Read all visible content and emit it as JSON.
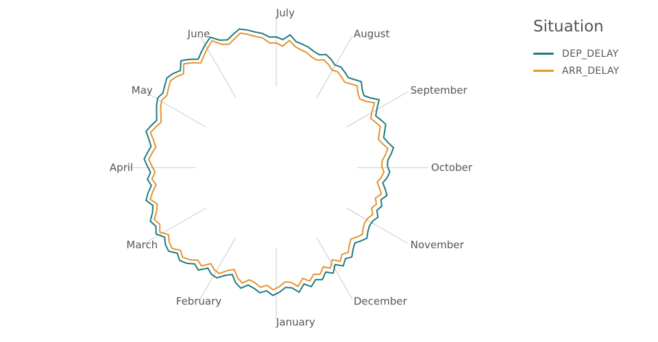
{
  "chart_data": {
    "type": "radial-line",
    "months": [
      "July",
      "August",
      "September",
      "October",
      "November",
      "December",
      "January",
      "February",
      "March",
      "April",
      "May",
      "June"
    ],
    "legend": {
      "title": "Situation",
      "placement": "top-right"
    },
    "series": [
      {
        "name": "DEP_DELAY",
        "color": "#1f7a80",
        "values": [
          14.8,
          13.5,
          16.2,
          13.2,
          12.5,
          11.8,
          10.5,
          9.8,
          11.2,
          10.1,
          8.5,
          9.2,
          8.1,
          7.0,
          8.3,
          9.8,
          7.5,
          6.1,
          8.0,
          11.0,
          7.8,
          5.4,
          6.8,
          8.2,
          6.5,
          5.1,
          6.6,
          8.8,
          7.1,
          5.2,
          4.9,
          6.1,
          5.0,
          3.1,
          4.8,
          6.4,
          4.1,
          5.5,
          4.0,
          5.9,
          4.5,
          4.3,
          5.2,
          6.8,
          5.4,
          3.8,
          5.5,
          7.9,
          6.6,
          8.9,
          6.1,
          9.4,
          7.2,
          10.0,
          8.8,
          11.5,
          9.2,
          12.8,
          10.1,
          9.5,
          11.8,
          13.4,
          11.2,
          12.6,
          10.8,
          9.8,
          12.3,
          10.5,
          7.2,
          9.0,
          12.1,
          11.8,
          10.2,
          13.8,
          12.5,
          15.0,
          16.4,
          14.8,
          17.5,
          16.9,
          15.1,
          18.0,
          16.3,
          17.8,
          15.2,
          13.8,
          16.5,
          14.6,
          12.4,
          14.0,
          12.2,
          13.8,
          15.5,
          14.1,
          12.8,
          14.6,
          16.9,
          15.3,
          13.6,
          15.1,
          16.8,
          18.1,
          17.2,
          18.6,
          20.1,
          19.2,
          17.6,
          21.0,
          18.8,
          16.2,
          18.4,
          20.6,
          22.5,
          19.1,
          17.8,
          19.5,
          21.2,
          19.8,
          18.1,
          16.9,
          14.8
        ]
      },
      {
        "name": "ARR_DELAY",
        "color": "#e6932d",
        "values": [
          11.8,
          10.2,
          13.4,
          10.6,
          9.6,
          8.9,
          7.4,
          6.9,
          8.3,
          7.2,
          5.6,
          6.3,
          5.2,
          4.1,
          5.4,
          6.9,
          4.6,
          3.4,
          5.1,
          8.2,
          4.9,
          2.6,
          3.9,
          5.3,
          3.6,
          2.3,
          3.8,
          6.0,
          4.2,
          2.4,
          2.0,
          3.2,
          2.1,
          0.3,
          1.9,
          3.5,
          1.2,
          2.6,
          1.1,
          3.0,
          1.6,
          1.4,
          2.3,
          3.9,
          2.5,
          1.0,
          2.7,
          5.0,
          3.8,
          6.1,
          3.3,
          6.5,
          4.3,
          7.1,
          5.9,
          8.6,
          6.3,
          9.9,
          7.3,
          6.7,
          9.0,
          10.6,
          8.4,
          9.8,
          8.0,
          7.1,
          9.6,
          7.8,
          4.5,
          6.4,
          9.6,
          9.1,
          7.5,
          11.2,
          10.0,
          12.6,
          14.2,
          12.6,
          15.3,
          14.6,
          12.8,
          15.9,
          14.1,
          15.6,
          13.0,
          11.5,
          14.3,
          12.3,
          10.0,
          11.7,
          9.9,
          11.5,
          13.2,
          11.8,
          10.4,
          12.2,
          14.6,
          12.9,
          11.2,
          12.7,
          14.5,
          15.8,
          14.9,
          16.3,
          17.8,
          16.9,
          15.3,
          18.9,
          16.6,
          13.9,
          16.1,
          18.4,
          20.5,
          16.8,
          15.5,
          17.2,
          19.1,
          17.5,
          15.8,
          14.6,
          11.8
        ]
      }
    ]
  }
}
